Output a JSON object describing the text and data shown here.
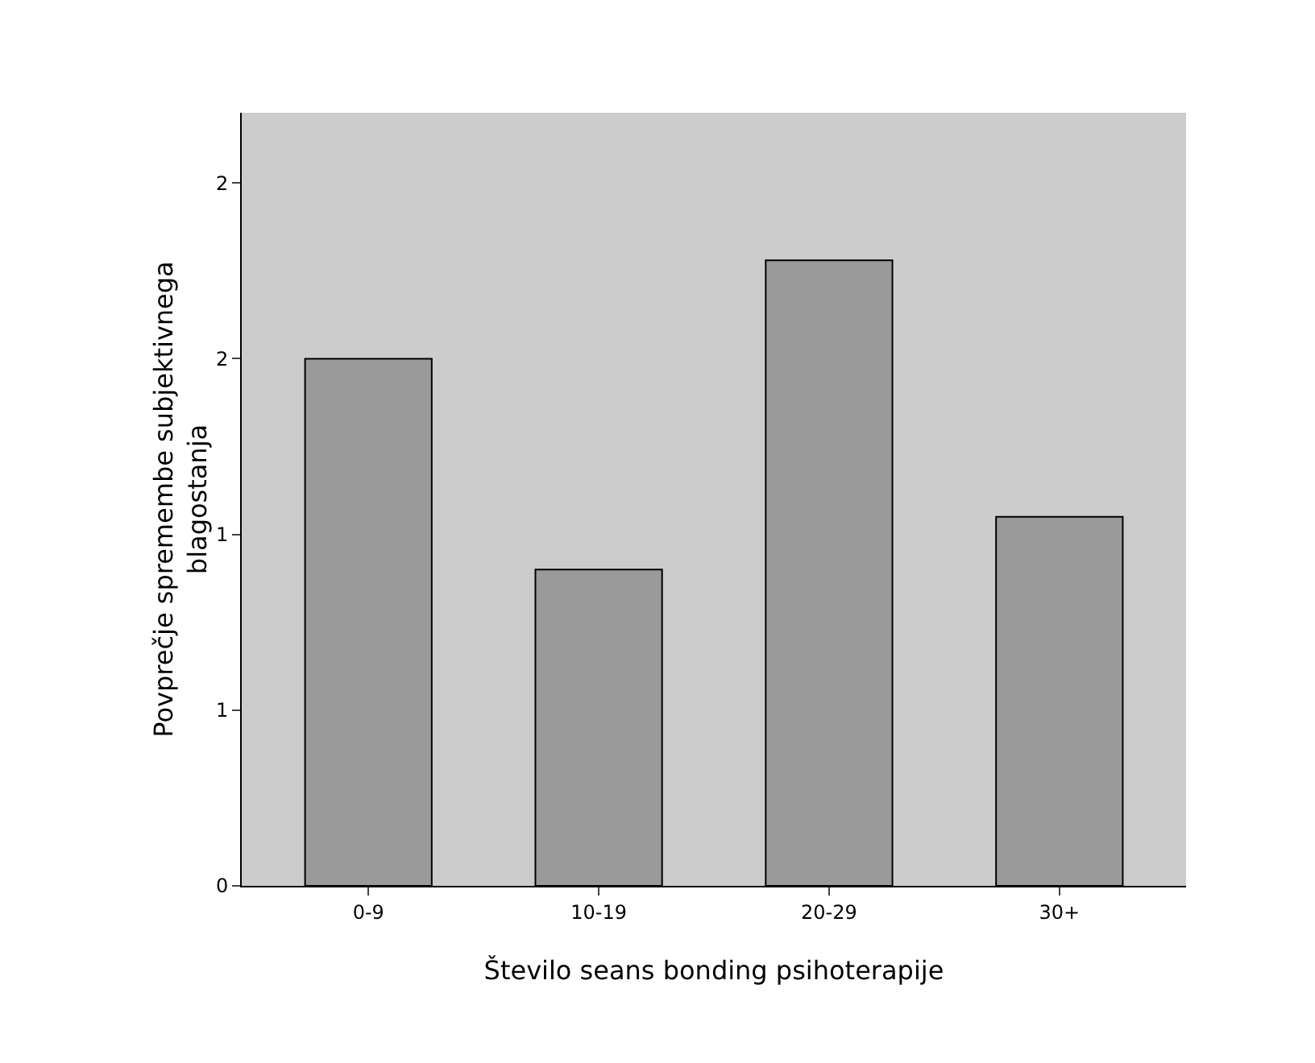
{
  "chart_data": {
    "type": "bar",
    "xlabel": "Število seans bonding psihoterapije",
    "ylabel": "Povprečje spremembe subjektivnega\nblagostanja",
    "categories": [
      "0-9",
      "10-19",
      "20-29",
      "30+"
    ],
    "values": [
      1.5,
      0.9,
      1.78,
      1.05
    ],
    "color": "#9a9a9a",
    "ylim": [
      0,
      2.2
    ],
    "yticks": [
      0,
      {
        "value": 0.5,
        "label": "1"
      },
      {
        "value": 1,
        "label": "1"
      },
      {
        "value": 1.5,
        "label": "2"
      },
      {
        "value": 2,
        "label": "2"
      }
    ],
    "grid": false
  }
}
